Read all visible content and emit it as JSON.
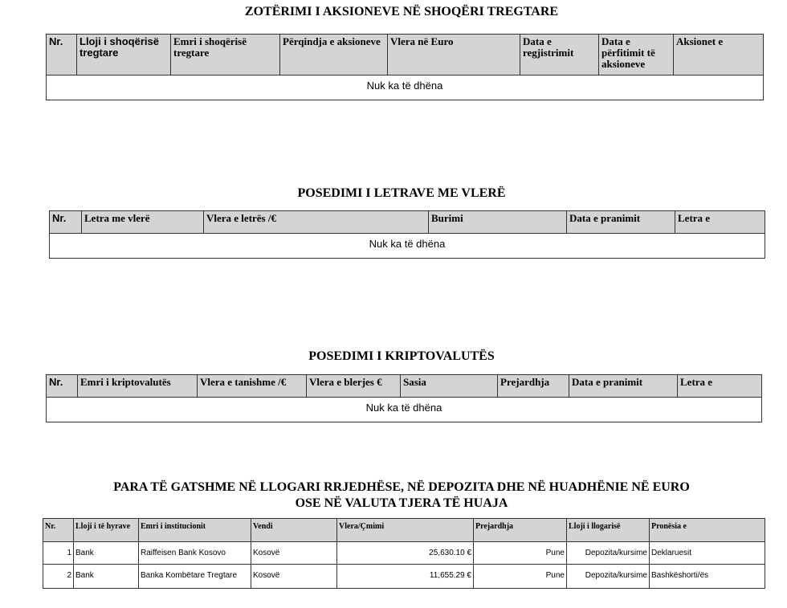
{
  "sections": [
    {
      "title": "ZOTËRIMI I AKSIONEVE NË SHOQËRI TREGTARE",
      "headers": [
        "Nr.",
        "Lloji i shoqërisë tregtare",
        "Emri i shoqërisë tregtare",
        "Përqindja e aksioneve",
        "Vlera në Euro",
        "Data e regjistrimit",
        "Data e përfitimit të aksioneve",
        "Aksionet e"
      ],
      "empty": "Nuk ka të dhëna"
    },
    {
      "title": "POSEDIMI I LETRAVE ME VLERË",
      "headers": [
        "Nr.",
        "Letra me vlerë",
        "Vlera e letrës /€",
        "Burimi",
        "Data e pranimit",
        "Letra e"
      ],
      "empty": "Nuk ka të dhëna"
    },
    {
      "title": "POSEDIMI I KRIPTOVALUTËS",
      "headers": [
        "Nr.",
        "Emri i kriptovalutës",
        "Vlera e tanishme /€",
        "Vlera e blerjes €",
        "Sasia",
        "Prejardhja",
        "Data e pranimit",
        "Letra e"
      ],
      "empty": "Nuk ka të dhëna"
    },
    {
      "title": "PARA TË GATSHME NË LLOGARI RRJEDHËSE, NË DEPOZITA DHE NË HUADHËNIE NË EURO OSE NË VALUTA TJERA TË HUAJA",
      "headers": [
        "Nr.",
        "Lloji i të hyrave",
        "Emri i institucionit",
        "Vendi",
        "Vlera/Çmimi",
        "Prejardhja",
        "Lloji i llogarisë",
        "Pronësia e"
      ],
      "rows": [
        [
          "1",
          "Bank",
          "Raiffeisen Bank Kosovo",
          "Kosovë",
          "25,630.10 €",
          "Pune",
          "Depozita/kursime",
          "Deklaruesit"
        ],
        [
          "2",
          "Bank",
          "Banka Kombëtare Tregtare",
          "Kosovë",
          "11,655.29 €",
          "Pune",
          "Depozita/kursime",
          "Bashkëshorti/ës"
        ]
      ]
    }
  ]
}
